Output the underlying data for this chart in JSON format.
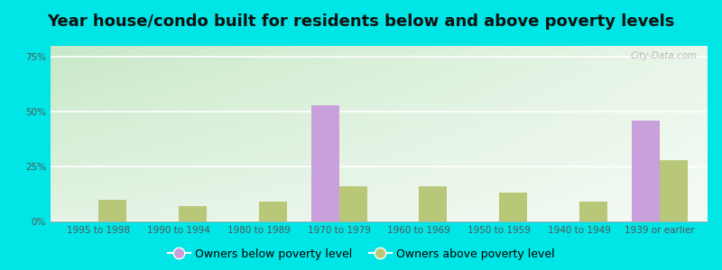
{
  "title": "Year house/condo built for residents below and above poverty levels",
  "categories": [
    "1995 to 1998",
    "1990 to 1994",
    "1980 to 1989",
    "1970 to 1979",
    "1960 to 1969",
    "1950 to 1959",
    "1940 to 1949",
    "1939 or earlier"
  ],
  "below_poverty": [
    0,
    0,
    0,
    53,
    0,
    0,
    0,
    46
  ],
  "above_poverty": [
    10,
    7,
    9,
    16,
    16,
    13,
    9,
    28
  ],
  "below_color": "#c9a0dc",
  "above_color": "#b8c878",
  "yticks": [
    0,
    25,
    50,
    75
  ],
  "ylim": [
    0,
    80
  ],
  "bar_width": 0.35,
  "bg_color_topleft": "#c8e8c8",
  "bg_color_bottomright": "#f0f8f0",
  "outer_bg": "#00e5e5",
  "legend_below": "Owners below poverty level",
  "legend_above": "Owners above poverty level",
  "title_fontsize": 13,
  "tick_fontsize": 7.5,
  "legend_fontsize": 9,
  "watermark": "City-Data.com"
}
